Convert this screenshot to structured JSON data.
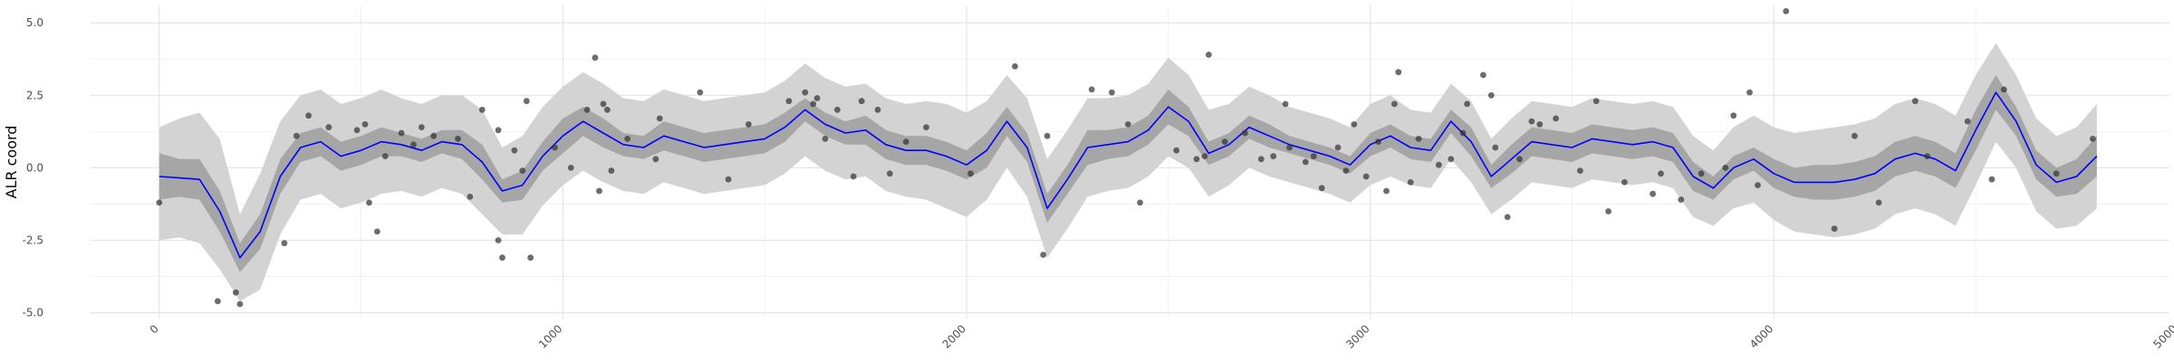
{
  "chart_data": {
    "type": "line",
    "title": "",
    "xlabel": "",
    "ylabel": "ALR coord",
    "xlim": [
      -170,
      4980
    ],
    "ylim": [
      -5.2,
      5.6
    ],
    "x_ticks": [
      0,
      1000,
      2000,
      3000,
      4000,
      5000
    ],
    "x_tick_labels": [
      "0",
      "1000",
      "2000",
      "3000",
      "4000",
      "5000"
    ],
    "y_ticks": [
      -5.0,
      -2.5,
      0.0,
      2.5,
      5.0
    ],
    "y_tick_labels": [
      "-5.0",
      "-2.5",
      "0.0",
      "2.5",
      "5.0"
    ],
    "grid": true,
    "legend": "none",
    "colors": {
      "mean_line": "#0000ff",
      "inner_band": "#a6a6a6",
      "outer_band": "#d3d3d3",
      "points": "#333333",
      "grid_major": "#e5e5e5",
      "grid_minor": "#f2f2f2"
    },
    "series": [
      {
        "type": "line",
        "x": [
          0,
          50,
          100,
          150,
          200,
          250,
          300,
          350,
          400,
          450,
          500,
          550,
          600,
          650,
          700,
          750,
          800,
          850,
          900,
          950,
          1000,
          1050,
          1100,
          1150,
          1200,
          1250,
          1300,
          1350,
          1400,
          1450,
          1500,
          1550,
          1600,
          1650,
          1700,
          1750,
          1800,
          1850,
          1900,
          1950,
          2000,
          2050,
          2100,
          2150,
          2200,
          2250,
          2300,
          2350,
          2400,
          2450,
          2500,
          2550,
          2600,
          2650,
          2700,
          2750,
          2800,
          2850,
          2900,
          2950,
          3000,
          3050,
          3100,
          3150,
          3200,
          3250,
          3300,
          3350,
          3400,
          3450,
          3500,
          3550,
          3600,
          3650,
          3700,
          3750,
          3800,
          3850,
          3900,
          3950,
          4000,
          4050,
          4100,
          4150,
          4200,
          4250,
          4300,
          4350,
          4400,
          4450,
          4500,
          4550,
          4600,
          4650,
          4700,
          4750,
          4800
        ],
        "y": [
          -0.3,
          -0.35,
          -0.4,
          -1.5,
          -3.1,
          -2.2,
          -0.3,
          0.7,
          0.9,
          0.4,
          0.6,
          0.9,
          0.8,
          0.6,
          0.9,
          0.8,
          0.2,
          -0.8,
          -0.6,
          0.4,
          1.1,
          1.6,
          1.2,
          0.8,
          0.7,
          1.1,
          0.9,
          0.7,
          0.8,
          0.9,
          1.0,
          1.4,
          2.0,
          1.5,
          1.2,
          1.3,
          0.8,
          0.6,
          0.6,
          0.4,
          0.1,
          0.6,
          1.6,
          0.7,
          -1.4,
          -0.4,
          0.7,
          0.8,
          0.9,
          1.3,
          2.1,
          1.6,
          0.5,
          0.8,
          1.4,
          1.1,
          0.8,
          0.6,
          0.4,
          0.1,
          0.8,
          1.1,
          0.7,
          0.6,
          1.6,
          0.9,
          -0.3,
          0.3,
          0.9,
          0.8,
          0.7,
          1.0,
          0.9,
          0.8,
          0.9,
          0.7,
          -0.3,
          -0.7,
          0.0,
          0.3,
          -0.2,
          -0.5,
          -0.5,
          -0.5,
          -0.4,
          -0.2,
          0.3,
          0.5,
          0.3,
          -0.1,
          1.3,
          2.6,
          1.6,
          0.1,
          -0.5,
          -0.3,
          0.4
        ],
        "lower_inner": [
          -1.1,
          -1.0,
          -1.1,
          -2.2,
          -3.6,
          -2.8,
          -0.9,
          0.2,
          0.4,
          -0.1,
          0.1,
          0.4,
          0.4,
          0.2,
          0.5,
          0.3,
          -0.4,
          -1.2,
          -1.1,
          -0.1,
          0.5,
          1.1,
          0.7,
          0.4,
          0.3,
          0.6,
          0.4,
          0.2,
          0.3,
          0.4,
          0.5,
          0.9,
          1.6,
          1.1,
          0.8,
          0.8,
          0.3,
          0.1,
          0.1,
          -0.1,
          -0.4,
          0.0,
          1.1,
          0.2,
          -1.9,
          -0.9,
          0.1,
          0.3,
          0.4,
          0.8,
          1.5,
          1.1,
          0.1,
          0.4,
          1.0,
          0.7,
          0.5,
          0.3,
          0.1,
          -0.2,
          0.4,
          0.7,
          0.3,
          0.2,
          1.2,
          0.4,
          -0.7,
          -0.2,
          0.4,
          0.3,
          0.2,
          0.5,
          0.4,
          0.3,
          0.4,
          0.2,
          -0.8,
          -1.1,
          -0.4,
          -0.1,
          -0.7,
          -1.0,
          -1.1,
          -1.1,
          -1.0,
          -0.8,
          -0.3,
          -0.1,
          -0.3,
          -0.7,
          0.6,
          2.0,
          1.1,
          -0.4,
          -1.0,
          -0.9,
          -0.3
        ],
        "upper_inner": [
          0.5,
          0.3,
          0.3,
          -0.8,
          -2.6,
          -1.6,
          0.3,
          1.2,
          1.4,
          0.9,
          1.1,
          1.4,
          1.2,
          1.0,
          1.3,
          1.3,
          0.8,
          -0.4,
          -0.1,
          0.9,
          1.7,
          2.1,
          1.7,
          1.2,
          1.1,
          1.6,
          1.4,
          1.2,
          1.3,
          1.4,
          1.5,
          1.9,
          2.4,
          1.9,
          1.6,
          1.8,
          1.3,
          1.1,
          1.1,
          0.9,
          0.6,
          1.2,
          2.1,
          1.2,
          -0.9,
          0.1,
          1.3,
          1.3,
          1.4,
          1.8,
          2.7,
          2.1,
          0.9,
          1.2,
          1.8,
          1.5,
          1.1,
          0.9,
          0.7,
          0.4,
          1.2,
          1.5,
          1.1,
          1.0,
          2.0,
          1.4,
          0.1,
          0.8,
          1.4,
          1.3,
          1.2,
          1.5,
          1.4,
          1.3,
          1.4,
          1.2,
          0.2,
          -0.3,
          0.4,
          0.7,
          0.3,
          0.0,
          0.1,
          0.1,
          0.2,
          0.4,
          0.9,
          1.1,
          0.9,
          0.5,
          2.0,
          3.2,
          2.1,
          0.6,
          0.0,
          0.3,
          1.1
        ],
        "lower_outer": [
          -2.5,
          -2.4,
          -2.6,
          -3.5,
          -4.6,
          -4.2,
          -2.3,
          -1.1,
          -0.9,
          -1.4,
          -1.2,
          -0.9,
          -0.8,
          -1.0,
          -0.7,
          -0.9,
          -1.6,
          -2.3,
          -2.3,
          -1.3,
          -0.6,
          -0.1,
          -0.5,
          -0.8,
          -0.9,
          -0.5,
          -0.7,
          -0.9,
          -0.8,
          -0.7,
          -0.6,
          -0.2,
          0.4,
          -0.1,
          -0.4,
          -0.3,
          -0.8,
          -1.0,
          -1.1,
          -1.4,
          -1.7,
          -1.1,
          0.0,
          -1.0,
          -3.1,
          -2.1,
          -1.0,
          -0.8,
          -0.7,
          -0.3,
          0.4,
          0.0,
          -1.0,
          -0.6,
          0.0,
          -0.3,
          -0.5,
          -0.7,
          -0.9,
          -1.2,
          -0.6,
          -0.3,
          -0.6,
          -0.7,
          0.3,
          -0.5,
          -1.6,
          -1.1,
          -0.5,
          -0.6,
          -0.7,
          -0.4,
          -0.5,
          -0.6,
          -0.5,
          -0.7,
          -1.7,
          -2.0,
          -1.4,
          -1.2,
          -1.8,
          -2.2,
          -2.3,
          -2.4,
          -2.3,
          -2.1,
          -1.6,
          -1.4,
          -1.6,
          -2.0,
          -0.6,
          0.9,
          0.0,
          -1.5,
          -2.1,
          -2.0,
          -1.4
        ],
        "upper_outer": [
          1.4,
          1.7,
          1.9,
          1.0,
          -1.6,
          -0.2,
          1.6,
          2.5,
          2.7,
          2.2,
          2.4,
          2.7,
          2.4,
          2.2,
          2.5,
          2.5,
          2.0,
          0.7,
          1.1,
          2.1,
          2.8,
          3.3,
          2.9,
          2.4,
          2.3,
          2.7,
          2.5,
          2.3,
          2.4,
          2.5,
          2.6,
          3.0,
          3.6,
          3.1,
          2.8,
          2.9,
          2.4,
          2.2,
          2.3,
          2.2,
          1.9,
          2.3,
          3.2,
          2.4,
          0.3,
          1.3,
          2.4,
          2.4,
          2.5,
          2.9,
          3.8,
          3.2,
          2.0,
          2.2,
          2.8,
          2.5,
          2.1,
          1.9,
          1.7,
          1.4,
          2.2,
          2.5,
          2.0,
          1.9,
          2.9,
          2.3,
          1.0,
          1.7,
          2.3,
          2.2,
          2.1,
          2.4,
          2.3,
          2.2,
          2.3,
          2.1,
          1.1,
          0.6,
          1.4,
          1.8,
          1.4,
          1.2,
          1.3,
          1.4,
          1.5,
          1.7,
          2.2,
          2.4,
          2.2,
          1.8,
          3.2,
          4.3,
          3.2,
          1.7,
          1.1,
          1.4,
          2.2
        ]
      },
      {
        "type": "scatter",
        "x": [
          0,
          145,
          190,
          200,
          310,
          340,
          370,
          420,
          490,
          510,
          520,
          540,
          560,
          600,
          630,
          650,
          680,
          740,
          770,
          800,
          840,
          840,
          850,
          880,
          900,
          910,
          920,
          980,
          1020,
          1060,
          1080,
          1090,
          1100,
          1110,
          1120,
          1160,
          1230,
          1240,
          1340,
          1410,
          1460,
          1560,
          1600,
          1620,
          1630,
          1650,
          1680,
          1720,
          1740,
          1780,
          1810,
          1850,
          1900,
          2010,
          2120,
          2190,
          2200,
          2310,
          2360,
          2400,
          2430,
          2520,
          2570,
          2590,
          2600,
          2640,
          2690,
          2730,
          2760,
          2790,
          2800,
          2840,
          2860,
          2880,
          2920,
          2940,
          2960,
          2990,
          3020,
          3040,
          3060,
          3070,
          3100,
          3120,
          3170,
          3200,
          3230,
          3240,
          3280,
          3300,
          3310,
          3340,
          3370,
          3400,
          3420,
          3460,
          3520,
          3560,
          3590,
          3630,
          3700,
          3720,
          3770,
          3820,
          3880,
          3900,
          3940,
          3960,
          4030,
          4150,
          4200,
          4260,
          4350,
          4380,
          4480,
          4540,
          4570,
          4700,
          4790
        ],
        "y": [
          -1.2,
          -4.6,
          -4.3,
          -4.7,
          -2.6,
          1.1,
          1.8,
          1.4,
          1.3,
          1.5,
          -1.2,
          -2.2,
          0.4,
          1.2,
          0.8,
          1.4,
          1.1,
          1.0,
          -1.0,
          2.0,
          1.3,
          -2.5,
          -3.1,
          0.6,
          -0.1,
          2.3,
          -3.1,
          0.7,
          0.0,
          2.0,
          3.8,
          -0.8,
          2.2,
          2.0,
          -0.1,
          1.0,
          0.3,
          1.7,
          2.6,
          -0.4,
          1.5,
          2.3,
          2.6,
          2.2,
          2.4,
          1.0,
          2.0,
          -0.3,
          2.3,
          2.0,
          -0.2,
          0.9,
          1.4,
          -0.2,
          3.5,
          -3.0,
          1.1,
          2.7,
          2.6,
          1.5,
          -1.2,
          0.6,
          0.3,
          0.4,
          3.9,
          0.9,
          1.2,
          0.3,
          0.4,
          2.2,
          0.7,
          0.2,
          0.4,
          -0.7,
          0.7,
          -0.1,
          1.5,
          -0.3,
          0.9,
          -0.8,
          2.2,
          3.3,
          -0.5,
          1.0,
          0.1,
          0.3,
          1.2,
          2.2,
          3.2,
          2.5,
          0.7,
          -1.7,
          0.3,
          1.6,
          1.5,
          1.7,
          -0.1,
          2.3,
          -1.5,
          -0.5,
          -0.9,
          -0.2,
          -1.1,
          -0.2,
          0.0,
          1.8,
          2.6,
          -0.6,
          5.4,
          -2.1,
          1.1,
          -1.2,
          2.3,
          0.4,
          1.6,
          -0.4,
          2.7,
          -0.2,
          1.0
        ]
      }
    ]
  }
}
